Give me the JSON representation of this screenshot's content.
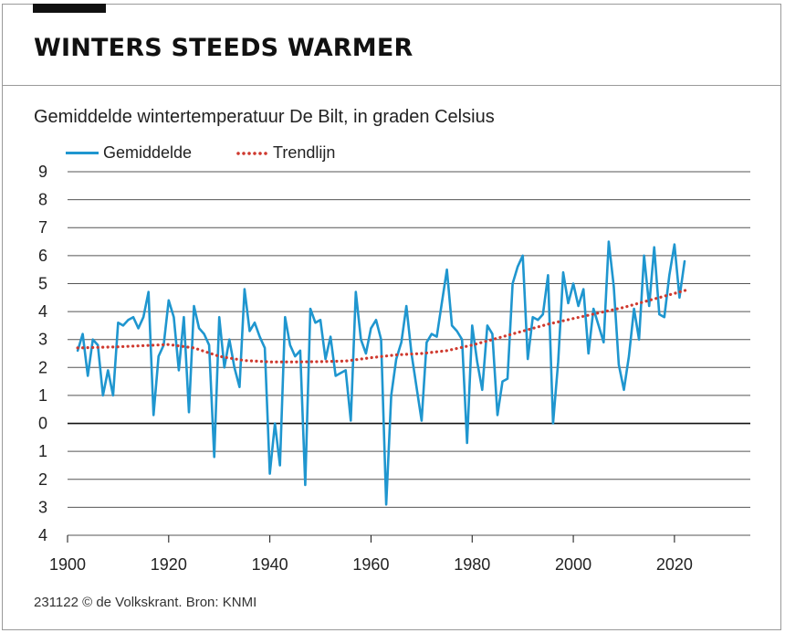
{
  "header": {
    "title": "WINTERS STEEDS WARMER"
  },
  "chart_data": {
    "type": "line",
    "subtitle": "Gemiddelde wintertemperatuur De Bilt, in graden Celsius",
    "legend": [
      "Gemiddelde",
      "Trendlijn"
    ],
    "xlim": [
      1900,
      2035
    ],
    "ylim": [
      -4,
      9
    ],
    "x_ticks": [
      1900,
      1920,
      1940,
      1960,
      1980,
      2000,
      2020
    ],
    "y_ticks": [
      9,
      8,
      7,
      6,
      5,
      4,
      3,
      2,
      1,
      0,
      -1,
      -2,
      -3,
      -4
    ],
    "y_tick_labels": [
      "9",
      "8",
      "7",
      "6",
      "5",
      "4",
      "3",
      "2",
      "1",
      "0",
      "1",
      "2",
      "3",
      "4"
    ],
    "colors": {
      "series": "#1f96cf",
      "trend": "#cf3a2f",
      "grid": "#555555"
    },
    "series": [
      {
        "name": "Gemiddelde",
        "start_year": 1902,
        "values": [
          2.6,
          3.2,
          1.7,
          3.0,
          2.8,
          1.0,
          1.9,
          1.0,
          3.6,
          3.5,
          3.7,
          3.8,
          3.4,
          3.8,
          4.7,
          0.3,
          2.4,
          2.8,
          4.4,
          3.8,
          1.9,
          3.8,
          0.4,
          4.2,
          3.4,
          3.2,
          2.8,
          -1.2,
          3.8,
          2.0,
          3.0,
          2.0,
          1.3,
          4.8,
          3.3,
          3.6,
          3.1,
          2.7,
          -1.8,
          0.0,
          -1.5,
          3.8,
          2.8,
          2.4,
          2.6,
          -2.2,
          4.1,
          3.6,
          3.7,
          2.3,
          3.1,
          1.7,
          1.8,
          1.9,
          0.1,
          4.7,
          3.0,
          2.5,
          3.4,
          3.7,
          3.0,
          -2.9,
          1.0,
          2.3,
          2.9,
          4.2,
          2.5,
          1.3,
          0.1,
          2.9,
          3.2,
          3.1,
          4.3,
          5.5,
          3.5,
          3.3,
          3.0,
          -0.7,
          3.5,
          2.2,
          1.2,
          3.5,
          3.2,
          0.3,
          1.5,
          1.6,
          5.0,
          5.6,
          6.0,
          2.3,
          3.8,
          3.7,
          3.9,
          5.3,
          0.0,
          2.2,
          5.4,
          4.3,
          5.0,
          4.2,
          4.8,
          2.5,
          4.1,
          3.5,
          2.9,
          6.5,
          4.9,
          2.1,
          1.2,
          2.4,
          4.1,
          3.0,
          6.0,
          4.2,
          6.3,
          3.9,
          3.8,
          5.3,
          6.4,
          4.5,
          5.8
        ]
      },
      {
        "name": "Trendlijn",
        "x": [
          1902,
          1910,
          1915,
          1920,
          1925,
          1930,
          1935,
          1940,
          1945,
          1950,
          1955,
          1960,
          1965,
          1970,
          1975,
          1980,
          1985,
          1990,
          1995,
          2000,
          2005,
          2010,
          2015,
          2020,
          2023
        ],
        "values": [
          2.7,
          2.74,
          2.78,
          2.82,
          2.7,
          2.4,
          2.25,
          2.2,
          2.2,
          2.21,
          2.23,
          2.35,
          2.45,
          2.5,
          2.6,
          2.8,
          3.05,
          3.3,
          3.55,
          3.75,
          3.95,
          4.15,
          4.4,
          4.65,
          4.8
        ]
      }
    ]
  },
  "footer": {
    "credit": "231122 © de Volkskrant. Bron: KNMI"
  }
}
